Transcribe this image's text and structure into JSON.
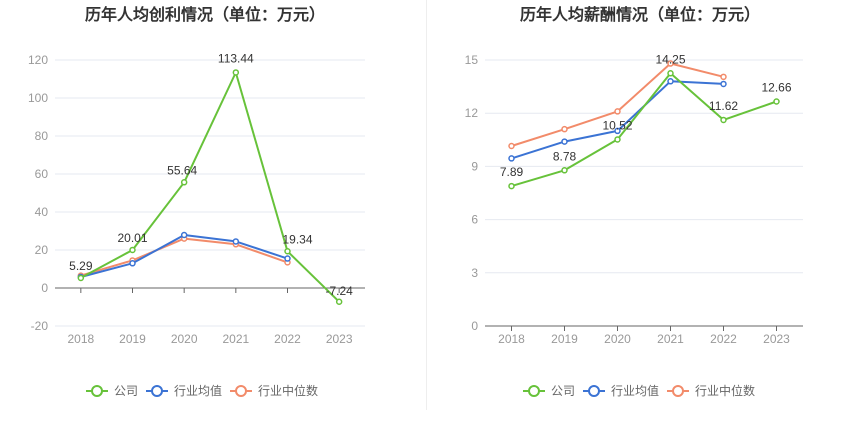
{
  "chart_data": [
    {
      "type": "line",
      "title": "历年人均创利情况（单位：万元）",
      "categories": [
        "2018",
        "2019",
        "2020",
        "2021",
        "2022",
        "2023"
      ],
      "y_ticks": [
        "120",
        "100",
        "80",
        "60",
        "40",
        "20",
        "0",
        "-20"
      ],
      "ylim": [
        -20,
        120
      ],
      "grid": true,
      "legend_position": "bottom-center",
      "series": [
        {
          "name": "公司",
          "color": "#67c23a",
          "values": [
            5.29,
            20.01,
            55.64,
            113.44,
            19.34,
            -7.24
          ],
          "labels": [
            "5.29",
            "20.01",
            "55.64",
            "113.44",
            "19.34",
            "-7.24"
          ]
        },
        {
          "name": "行业均值",
          "color": "#3b73d4",
          "values": [
            5.8,
            13.0,
            27.9,
            24.5,
            15.5,
            null
          ]
        },
        {
          "name": "行业中位数",
          "color": "#f28b6a",
          "values": [
            6.5,
            14.5,
            26.0,
            23.0,
            13.5,
            null
          ]
        }
      ]
    },
    {
      "type": "line",
      "title": "历年人均薪酬情况（单位：万元）",
      "categories": [
        "2018",
        "2019",
        "2020",
        "2021",
        "2022",
        "2023"
      ],
      "y_ticks": [
        "15",
        "12",
        "9",
        "6",
        "3",
        "0"
      ],
      "ylim": [
        0,
        15
      ],
      "grid": true,
      "legend_position": "bottom-center",
      "series": [
        {
          "name": "公司",
          "color": "#67c23a",
          "values": [
            7.89,
            8.78,
            10.52,
            14.25,
            11.62,
            12.66
          ],
          "labels": [
            "7.89",
            "8.78",
            "10.52",
            "14.25",
            "11.62",
            "12.66"
          ]
        },
        {
          "name": "行业均值",
          "color": "#3b73d4",
          "values": [
            9.45,
            10.4,
            11.0,
            13.8,
            13.65,
            null
          ]
        },
        {
          "name": "行业中位数",
          "color": "#f28b6a",
          "values": [
            10.15,
            11.1,
            12.1,
            14.8,
            14.05,
            null
          ]
        }
      ]
    }
  ]
}
